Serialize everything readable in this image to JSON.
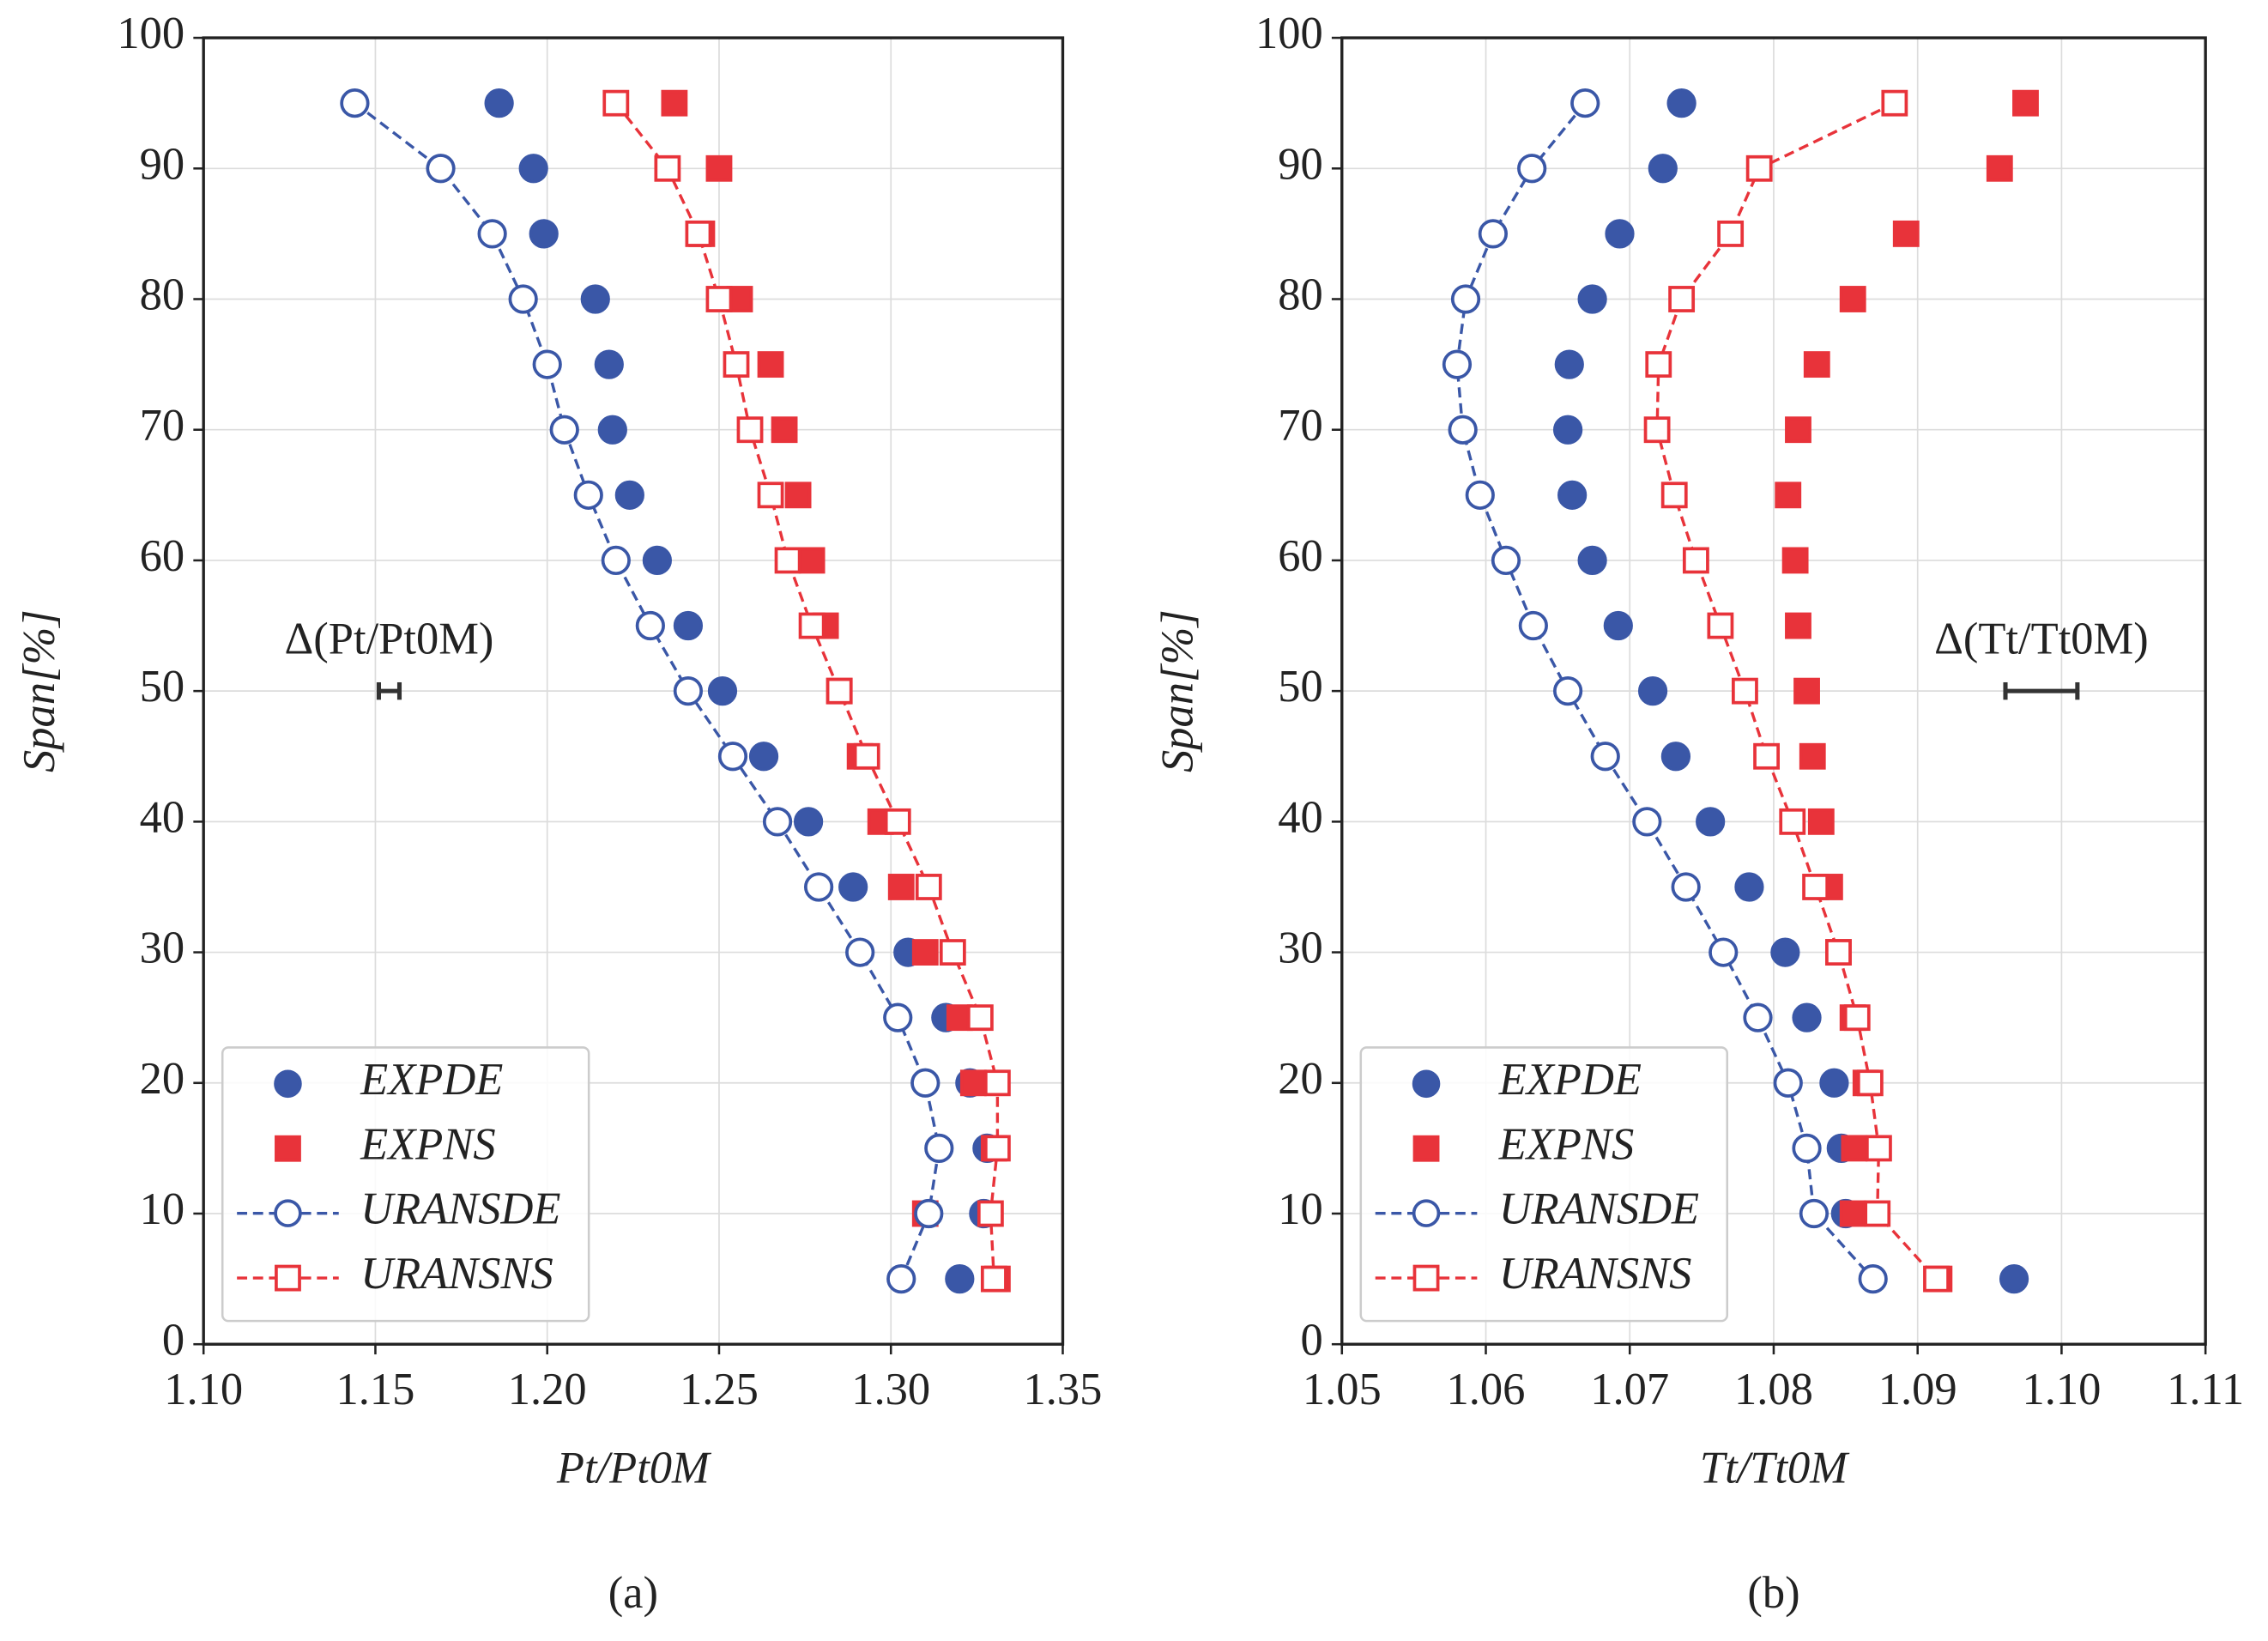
{
  "chart_data": [
    {
      "type": "scatter",
      "panel_label": "(a)",
      "xlabel": "Pt/Pt0M",
      "ylabel": "Span[%]",
      "xlim": [
        1.1,
        1.35
      ],
      "xticks": [
        {
          "value": 1.1,
          "label": "1.10"
        },
        1.15,
        {
          "value": 1.2,
          "label": "1.20"
        },
        1.25,
        {
          "value": 1.3,
          "label": "1.30"
        },
        1.35
      ],
      "ylim": [
        0,
        100
      ],
      "yticks": [
        0,
        10,
        20,
        30,
        40,
        50,
        60,
        70,
        80,
        90,
        100
      ],
      "grid": true,
      "legend": "lower left",
      "y": [
        95,
        90,
        85,
        80,
        75,
        70,
        65,
        60,
        55,
        50,
        45,
        40,
        35,
        30,
        25,
        20,
        15,
        10,
        5
      ],
      "series": [
        {
          "name": "EXPDE",
          "color": "#3a57a7",
          "marker": "circle",
          "filled": true,
          "line": false,
          "values": [
            1.186,
            1.196,
            1.199,
            1.214,
            1.218,
            1.219,
            1.224,
            1.232,
            1.241,
            1.251,
            1.263,
            1.276,
            1.289,
            1.305,
            1.316,
            1.323,
            1.328,
            1.327,
            1.32
          ]
        },
        {
          "name": "EXPNS",
          "color": "#e8333a",
          "marker": "square",
          "filled": true,
          "line": false,
          "values": [
            1.237,
            1.25,
            1.245,
            1.256,
            1.265,
            1.269,
            1.273,
            1.277,
            1.281,
            1.285,
            1.291,
            1.297,
            1.303,
            1.31,
            1.32,
            1.324,
            1.33,
            1.31,
            1.331
          ]
        },
        {
          "name": "URANSDE",
          "color": "#3a57a7",
          "marker": "circle",
          "filled": false,
          "line": true,
          "values": [
            1.144,
            1.169,
            1.184,
            1.193,
            1.2,
            1.205,
            1.212,
            1.22,
            1.23,
            1.241,
            1.254,
            1.267,
            1.279,
            1.291,
            1.302,
            1.31,
            1.314,
            1.311,
            1.303
          ]
        },
        {
          "name": "URANSNS",
          "color": "#e8333a",
          "marker": "square",
          "filled": false,
          "line": true,
          "values": [
            1.22,
            1.235,
            1.244,
            1.25,
            1.255,
            1.259,
            1.265,
            1.27,
            1.277,
            1.285,
            1.293,
            1.302,
            1.311,
            1.318,
            1.326,
            1.331,
            1.331,
            1.329,
            1.33
          ]
        }
      ],
      "errorbar": {
        "label": "Δ(Pt/Pt0M)",
        "x": 1.154,
        "y": 50,
        "err": 0.003
      }
    },
    {
      "type": "scatter",
      "panel_label": "(b)",
      "xlabel": "Tt/Tt0M",
      "ylabel": "Span[%]",
      "xlim": [
        1.05,
        1.11
      ],
      "xticks": [
        1.05,
        1.06,
        1.07,
        1.08,
        1.09,
        {
          "value": 1.1,
          "label": "1.10"
        },
        1.11
      ],
      "ylim": [
        0,
        100
      ],
      "yticks": [
        0,
        10,
        20,
        30,
        40,
        50,
        60,
        70,
        80,
        90,
        100
      ],
      "grid": true,
      "legend": "lower left",
      "y": [
        95,
        90,
        85,
        80,
        75,
        70,
        65,
        60,
        55,
        50,
        45,
        40,
        35,
        30,
        25,
        20,
        15,
        10,
        5
      ],
      "series": [
        {
          "name": "EXPDE",
          "color": "#3a57a7",
          "marker": "circle",
          "filled": true,
          "line": false,
          "values": [
            1.0736,
            1.0723,
            1.0693,
            1.0674,
            1.0658,
            1.0657,
            1.066,
            1.0674,
            1.0692,
            1.0716,
            1.0732,
            1.0756,
            1.0783,
            1.0808,
            1.0823,
            1.0842,
            1.0847,
            1.085,
            1.0967
          ]
        },
        {
          "name": "EXPNS",
          "color": "#e8333a",
          "marker": "square",
          "filled": true,
          "line": false,
          "values": [
            1.0975,
            1.0957,
            1.0892,
            1.0855,
            1.083,
            1.0817,
            1.081,
            1.0815,
            1.0817,
            1.0823,
            1.0827,
            1.0833,
            1.0839,
            1.0845,
            1.0855,
            1.0864,
            1.0856,
            1.0855,
            1.0915
          ]
        },
        {
          "name": "URANSDE",
          "color": "#3a57a7",
          "marker": "circle",
          "filled": false,
          "line": true,
          "values": [
            1.0669,
            1.0632,
            1.0605,
            1.0586,
            1.058,
            1.0584,
            1.0596,
            1.0614,
            1.0633,
            1.0657,
            1.0683,
            1.0712,
            1.0739,
            1.0765,
            1.0789,
            1.081,
            1.0823,
            1.0828,
            1.0869
          ]
        },
        {
          "name": "URANSNS",
          "color": "#e8333a",
          "marker": "square",
          "filled": false,
          "line": true,
          "values": [
            1.0884,
            1.079,
            1.077,
            1.0736,
            1.072,
            1.0719,
            1.0731,
            1.0746,
            1.0763,
            1.078,
            1.0795,
            1.0813,
            1.0829,
            1.0845,
            1.0858,
            1.0867,
            1.0873,
            1.0872,
            1.0913
          ]
        }
      ],
      "errorbar": {
        "label": "Δ(Tt/Tt0M)",
        "x": 1.0986,
        "y": 50,
        "err": 0.0025
      }
    }
  ]
}
